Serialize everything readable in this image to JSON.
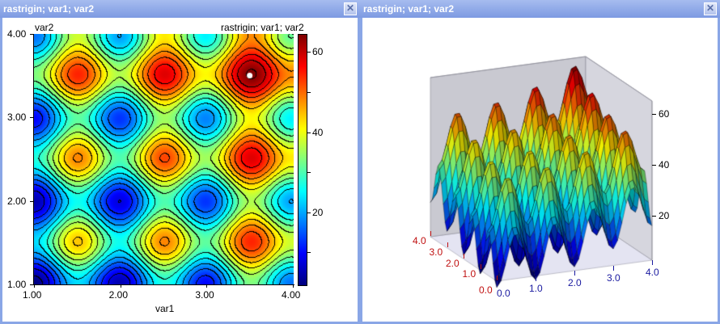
{
  "left_window": {
    "title": "rastrigin; var1; var2",
    "close_icon": "close-icon"
  },
  "right_window": {
    "title": "rastrigin; var1; var2",
    "close_icon": "close-icon"
  },
  "chart_data": [
    {
      "type": "heatmap",
      "function": "rastrigin",
      "title": "rastrigin; var1; var2",
      "xlabel": "var1",
      "ylabel": "var2",
      "xlim": [
        1,
        4
      ],
      "ylim": [
        1,
        4
      ],
      "x_ticks": [
        "1.00",
        "2.00",
        "3.00",
        "4.00"
      ],
      "y_ticks": [
        "1.00",
        "2.00",
        "3.00",
        "4.00"
      ],
      "colorbar": {
        "range": [
          2,
          64.5
        ],
        "ticks": [
          "20",
          "40",
          "60"
        ],
        "colormap": "jet"
      },
      "contour_step": 4,
      "marked_point": {
        "x": 3.5,
        "y": 3.5,
        "value": 64.5
      }
    },
    {
      "type": "surface",
      "function": "rastrigin",
      "xlim": [
        0,
        4
      ],
      "ylim": [
        0,
        4
      ],
      "zlim": [
        2.5,
        65
      ],
      "x_ticks": [
        "0.0",
        "1.0",
        "2.0",
        "3.0",
        "4.0"
      ],
      "y_ticks": [
        "0.0",
        "1.0",
        "2.0",
        "3.0",
        "4.0"
      ],
      "z_ticks": [
        "20",
        "40",
        "60"
      ],
      "x_tick_color": "#1a1aa0",
      "y_tick_color": "#c01010"
    }
  ]
}
